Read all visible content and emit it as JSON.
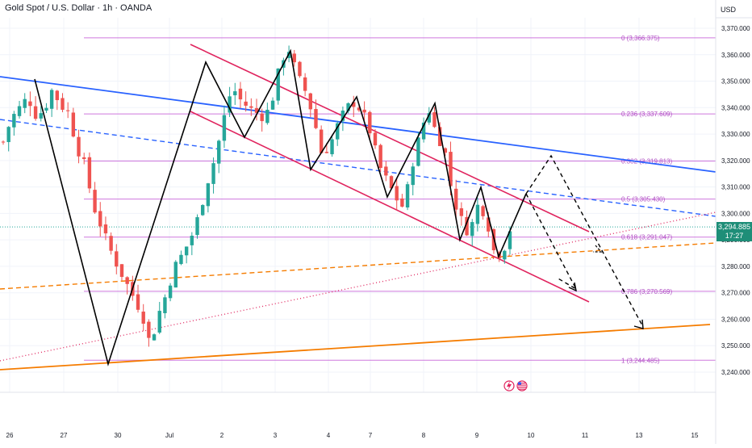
{
  "chart_title": "Gold Spot / U.S. Dollar · 1h · OANDA",
  "currency": "USD",
  "last_price": "3,294.885",
  "countdown": "17:27",
  "colors": {
    "up": "#26a69a",
    "down": "#ef5350",
    "fib": "#c761d8",
    "fib_text": "#b04fc4",
    "channel": "#e0245e",
    "trend_blue": "#2962ff",
    "trend_orange": "#f57c00",
    "zigzag": "#000000",
    "tag": "#1e8e78"
  },
  "chart_data": {
    "type": "candlestick",
    "symbol": "XAUUSD",
    "timeframe": "1h",
    "ylim": [
      3230,
      3375
    ],
    "y_ticks": [
      "3,240.000",
      "3,250.000",
      "3,260.000",
      "3,270.000",
      "3,280.000",
      "3,290.000",
      "3,300.000",
      "3,310.000",
      "3,320.000",
      "3,330.000",
      "3,340.000",
      "3,350.000",
      "3,360.000",
      "3,370.000"
    ],
    "x_ticks": [
      "26",
      "27",
      "30",
      "Jul",
      "2",
      "3",
      "4",
      "7",
      "8",
      "9",
      "10",
      "11",
      "13",
      "15"
    ],
    "fibonacci": [
      {
        "label": "0 (3,366.375)",
        "level": 3366.375
      },
      {
        "label": "0.236 (3,337.609)",
        "level": 3337.609
      },
      {
        "label": "0.382 (3,319.813)",
        "level": 3319.813
      },
      {
        "label": "0.5 (3,305.430)",
        "level": 3305.43
      },
      {
        "label": "0.618 (3,291.047)",
        "level": 3291.047
      },
      {
        "label": "0.786 (3,270.569)",
        "level": 3270.569
      },
      {
        "label": "1 (3,244.485)",
        "level": 3244.485
      }
    ],
    "close_path": [
      [
        0,
        3327
      ],
      [
        1,
        3336
      ],
      [
        2,
        3340
      ],
      [
        3,
        3344
      ],
      [
        4,
        3337
      ],
      [
        5,
        3339
      ],
      [
        6,
        3347
      ],
      [
        7,
        3341
      ],
      [
        8,
        3338
      ],
      [
        9,
        3325
      ],
      [
        10,
        3318
      ],
      [
        11,
        3303
      ],
      [
        12,
        3295
      ],
      [
        13,
        3287
      ],
      [
        14,
        3280
      ],
      [
        15,
        3274
      ],
      [
        16,
        3268
      ],
      [
        17,
        3262
      ],
      [
        18,
        3250
      ],
      [
        19,
        3262
      ],
      [
        20,
        3270
      ],
      [
        21,
        3280
      ],
      [
        22,
        3285
      ],
      [
        23,
        3291
      ],
      [
        24,
        3300
      ],
      [
        25,
        3312
      ],
      [
        26,
        3322
      ],
      [
        27,
        3336
      ],
      [
        28,
        3348
      ],
      [
        29,
        3343
      ],
      [
        30,
        3340
      ],
      [
        31,
        3338
      ],
      [
        32,
        3336
      ],
      [
        33,
        3344
      ],
      [
        34,
        3358
      ],
      [
        35,
        3362
      ],
      [
        36,
        3352
      ],
      [
        37,
        3346
      ],
      [
        38,
        3336
      ],
      [
        39,
        3322
      ],
      [
        40,
        3326
      ],
      [
        41,
        3334
      ],
      [
        42,
        3340
      ],
      [
        43,
        3342
      ],
      [
        44,
        3338
      ],
      [
        45,
        3330
      ],
      [
        46,
        3318
      ],
      [
        47,
        3312
      ],
      [
        48,
        3306
      ],
      [
        49,
        3302
      ],
      [
        50,
        3318
      ],
      [
        51,
        3330
      ],
      [
        52,
        3340
      ],
      [
        53,
        3330
      ],
      [
        54,
        3324
      ],
      [
        55,
        3306
      ],
      [
        56,
        3298
      ],
      [
        57,
        3292
      ],
      [
        58,
        3303
      ],
      [
        59,
        3300
      ],
      [
        60,
        3286
      ],
      [
        61,
        3284
      ],
      [
        62,
        3294
      ]
    ]
  }
}
